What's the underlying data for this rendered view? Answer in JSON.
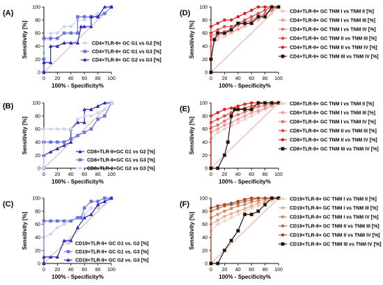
{
  "chart_data": [
    {
      "panel_label": "(A)",
      "type": "line",
      "xlabel": "100% - Specificity%",
      "ylabel": "Sensitivity [%]",
      "xlim": [
        0,
        100
      ],
      "ylim": [
        0,
        100
      ],
      "xticks": [
        0,
        20,
        40,
        60,
        80,
        100
      ],
      "yticks": [
        0,
        20,
        40,
        60,
        80,
        100
      ],
      "legend_position": "bottom-right",
      "series": [
        {
          "name": "CD4+TLR-9+ GC G1 vs G2 [%]",
          "marker": "circle",
          "color": "#cdd3ef",
          "x": [
            0,
            0,
            0,
            0,
            10,
            10,
            20,
            30,
            40,
            50,
            60,
            80,
            90,
            100
          ],
          "y": [
            0,
            15,
            30,
            50,
            50,
            60,
            60,
            70,
            70,
            80,
            80,
            90,
            90,
            100
          ]
        },
        {
          "name": "CD4+TLR-9+ GC G1 vs G3 [%]",
          "marker": "square",
          "color": "#6b73e0",
          "x": [
            0,
            0,
            0,
            10,
            20,
            30,
            40,
            50,
            50,
            60,
            70,
            80,
            90,
            100
          ],
          "y": [
            0,
            20,
            52,
            52,
            52,
            60,
            60,
            60,
            85,
            85,
            85,
            85,
            90,
            100
          ]
        },
        {
          "name": "CD4+TLR-9+ GC G2 vs G3 [%]",
          "marker": "triangle",
          "color": "#2727b8",
          "x": [
            0,
            0,
            10,
            10,
            20,
            30,
            40,
            50,
            55,
            60,
            70,
            70,
            80,
            90,
            100
          ],
          "y": [
            0,
            15,
            15,
            40,
            40,
            45,
            45,
            45,
            70,
            70,
            70,
            85,
            85,
            100,
            100
          ]
        }
      ]
    },
    {
      "panel_label": "(B)",
      "type": "line",
      "xlabel": "100% - Specificity%",
      "ylabel": "Sensitivity [%]",
      "xlim": [
        0,
        100
      ],
      "ylim": [
        0,
        100
      ],
      "xticks": [
        0,
        20,
        40,
        60,
        80,
        100
      ],
      "yticks": [
        0,
        20,
        40,
        60,
        80,
        100
      ],
      "legend_position": "bottom-right",
      "series": [
        {
          "name": "CD8+TLR-9+GC  G1 vs G2 [%]",
          "marker": "triangle",
          "color": "#2727b8",
          "x": [
            0,
            0,
            10,
            20,
            30,
            40,
            40,
            50,
            60,
            60,
            70,
            80,
            90,
            100
          ],
          "y": [
            0,
            20,
            25,
            30,
            35,
            40,
            60,
            70,
            70,
            90,
            90,
            95,
            100,
            100
          ]
        },
        {
          "name": "CD8+TLR-9+GC  G1 vs G3 [%]",
          "marker": "square",
          "color": "#6b73e0",
          "x": [
            0,
            0,
            10,
            20,
            30,
            40,
            50,
            60,
            70,
            80,
            90,
            100
          ],
          "y": [
            0,
            40,
            40,
            40,
            40,
            45,
            50,
            55,
            60,
            75,
            80,
            100
          ]
        },
        {
          "name": "CD8+TLR-9+GC  G2 vs G3 [%]",
          "marker": "circle",
          "color": "#cdd3ef",
          "x": [
            0,
            0,
            10,
            20,
            30,
            40,
            50,
            60,
            70,
            80,
            90,
            100
          ],
          "y": [
            0,
            60,
            60,
            60,
            60,
            60,
            75,
            80,
            80,
            85,
            90,
            100
          ]
        }
      ]
    },
    {
      "panel_label": "(C)",
      "type": "line",
      "xlabel": "100% - Specificity%",
      "ylabel": "Sensitivity [%]",
      "xlim": [
        0,
        100
      ],
      "ylim": [
        0,
        100
      ],
      "xticks": [
        0,
        20,
        40,
        60,
        80,
        100
      ],
      "yticks": [
        0,
        20,
        40,
        60,
        80,
        100
      ],
      "legend_position": "bottom-right",
      "series": [
        {
          "name": "CD19+TLR-9+ GC G1 vs. G2 [%]",
          "marker": "circle",
          "color": "#cdd3ef",
          "x": [
            0,
            0,
            10,
            20,
            30,
            40,
            50,
            60,
            70,
            80,
            90,
            100
          ],
          "y": [
            0,
            40,
            45,
            55,
            60,
            65,
            70,
            75,
            85,
            85,
            90,
            100
          ]
        },
        {
          "name": "CD19+TLR-9+ GC G1 vs. G3 [%]",
          "marker": "square",
          "color": "#6b73e0",
          "x": [
            0,
            0,
            10,
            20,
            30,
            40,
            50,
            55,
            60,
            70,
            80,
            90,
            100
          ],
          "y": [
            0,
            65,
            65,
            65,
            65,
            65,
            70,
            70,
            85,
            95,
            95,
            100,
            100
          ]
        },
        {
          "name": "CD19+TLR-9+ GC G2 vs. G3 [%]",
          "marker": "triangle",
          "color": "#2727b8",
          "x": [
            0,
            0,
            10,
            20,
            30,
            40,
            50,
            60,
            70,
            80,
            90,
            100
          ],
          "y": [
            0,
            10,
            10,
            10,
            35,
            35,
            55,
            70,
            75,
            90,
            95,
            100
          ]
        }
      ]
    },
    {
      "panel_label": "(D)",
      "type": "line",
      "xlabel": "100% - Specificity%",
      "ylabel": "Sensitivity [%]",
      "xlim": [
        0,
        100
      ],
      "ylim": [
        0,
        100
      ],
      "xticks": [
        0,
        20,
        40,
        60,
        80,
        100
      ],
      "yticks": [
        0,
        20,
        40,
        60,
        80,
        100
      ],
      "legend_position": "right",
      "series": [
        {
          "name": "CD4+TLR-9+ GC TNM I vs TNM II [%]",
          "marker": "circle",
          "color": "#f7c6c6",
          "x": [
            0,
            0,
            10,
            20,
            30,
            40,
            50,
            60,
            70,
            80,
            90,
            100
          ],
          "y": [
            0,
            40,
            50,
            55,
            60,
            65,
            70,
            75,
            80,
            85,
            90,
            100
          ]
        },
        {
          "name": "CD4+TLR-9+ GC TNM I vs TNM III [%]",
          "marker": "circle",
          "color": "#f09a9a",
          "x": [
            0,
            0,
            10,
            20,
            30,
            40,
            50,
            60,
            70,
            80,
            90,
            100
          ],
          "y": [
            0,
            50,
            55,
            60,
            62,
            66,
            72,
            78,
            82,
            88,
            95,
            100
          ]
        },
        {
          "name": "CD4+TLR-9+ GC TNM I vs TNM IV [%]",
          "marker": "circle",
          "color": "#e87070",
          "x": [
            0,
            0,
            10,
            20,
            30,
            40,
            50,
            60,
            70,
            80,
            90,
            100
          ],
          "y": [
            0,
            55,
            60,
            62,
            66,
            72,
            76,
            80,
            85,
            90,
            95,
            100
          ]
        },
        {
          "name": "CD4+TLR-9+ GC TNM II vs TNM III [%]",
          "marker": "circle",
          "color": "#de4848",
          "x": [
            0,
            0,
            10,
            20,
            30,
            40,
            50,
            60,
            70,
            80,
            90,
            100
          ],
          "y": [
            0,
            60,
            65,
            70,
            70,
            75,
            80,
            85,
            90,
            95,
            100,
            100
          ]
        },
        {
          "name": "CD4+TLR-9+ GC TNM II vs TNM IV [%]",
          "marker": "circle",
          "color": "#e01e1e",
          "x": [
            0,
            0,
            10,
            20,
            30,
            40,
            50,
            60,
            70,
            80,
            90,
            100
          ],
          "y": [
            0,
            70,
            75,
            80,
            80,
            85,
            90,
            95,
            100,
            100,
            100,
            100
          ]
        },
        {
          "name": "CD4+TLR-9+ GC TNM III vs TNM IV [%]",
          "marker": "square",
          "color": "#111111",
          "x": [
            0,
            0,
            5,
            10,
            20,
            30,
            40,
            50,
            60,
            70,
            80,
            90,
            100
          ],
          "y": [
            0,
            20,
            50,
            60,
            60,
            65,
            75,
            75,
            75,
            85,
            85,
            100,
            100
          ]
        }
      ]
    },
    {
      "panel_label": "(E)",
      "type": "line",
      "xlabel": "100% - Specificity%",
      "ylabel": "Sensitivity [%]",
      "xlim": [
        0,
        100
      ],
      "ylim": [
        0,
        100
      ],
      "xticks": [
        0,
        20,
        40,
        60,
        80,
        100
      ],
      "yticks": [
        0,
        20,
        40,
        60,
        80,
        100
      ],
      "legend_position": "right",
      "series": [
        {
          "name": "CD8+TLR-9+ GC TNM I vs TNM II [%]",
          "marker": "circle",
          "color": "#f7c6c6",
          "x": [
            0,
            0,
            10,
            20,
            30,
            40,
            50,
            60,
            70,
            80,
            90,
            100
          ],
          "y": [
            0,
            45,
            55,
            60,
            65,
            70,
            75,
            80,
            85,
            90,
            95,
            100
          ]
        },
        {
          "name": "CD8+TLR-9+ GC TNM I vs TNM III [%]",
          "marker": "circle",
          "color": "#f09a9a",
          "x": [
            0,
            0,
            10,
            20,
            30,
            40,
            50,
            60,
            70,
            80,
            90,
            100
          ],
          "y": [
            0,
            55,
            60,
            66,
            70,
            75,
            80,
            85,
            88,
            92,
            96,
            100
          ]
        },
        {
          "name": "CD8+TLR-9+ GC TNM I vs TNM IV [%]",
          "marker": "circle",
          "color": "#e87070",
          "x": [
            0,
            0,
            10,
            20,
            30,
            40,
            50,
            60,
            70,
            80,
            90,
            100
          ],
          "y": [
            0,
            62,
            66,
            72,
            78,
            82,
            86,
            90,
            94,
            96,
            98,
            100
          ]
        },
        {
          "name": "CD8+TLR-9+ GC TNM II vs TNM III [%]",
          "marker": "circle",
          "color": "#de4848",
          "x": [
            0,
            0,
            10,
            20,
            30,
            40,
            50,
            60,
            70,
            80,
            90,
            100
          ],
          "y": [
            0,
            70,
            75,
            80,
            85,
            90,
            92,
            95,
            98,
            100,
            100,
            100
          ]
        },
        {
          "name": "CD8+TLR-9+ GC TNM II vs TNM IV [%]",
          "marker": "circle",
          "color": "#e01e1e",
          "x": [
            0,
            0,
            10,
            20,
            30,
            40,
            50,
            60,
            70,
            80,
            90,
            100
          ],
          "y": [
            0,
            80,
            85,
            90,
            92,
            95,
            98,
            100,
            100,
            100,
            100,
            100
          ]
        },
        {
          "name": "CD8+TLR-9+ GC TNM III vs TNM IV [%]",
          "marker": "square",
          "color": "#111111",
          "x": [
            0,
            0,
            10,
            20,
            25,
            30,
            35,
            40,
            50,
            60,
            70,
            80,
            90,
            100
          ],
          "y": [
            0,
            0,
            0,
            20,
            40,
            80,
            90,
            90,
            90,
            90,
            100,
            100,
            100,
            100
          ]
        }
      ]
    },
    {
      "panel_label": "(F)",
      "type": "line",
      "xlabel": "100% - Specificity%",
      "ylabel": "Sensitivity [%]",
      "xlim": [
        0,
        100
      ],
      "ylim": [
        0,
        100
      ],
      "xticks": [
        0,
        20,
        40,
        60,
        80,
        100
      ],
      "yticks": [
        0,
        20,
        40,
        60,
        80,
        100
      ],
      "legend_position": "right",
      "series": [
        {
          "name": "CD19+TLR-9+ GC TNM I vs TNM II [%]",
          "marker": "circle",
          "color": "#f5d2c0",
          "x": [
            0,
            0,
            10,
            20,
            30,
            40,
            50,
            60,
            70,
            80,
            90,
            100
          ],
          "y": [
            0,
            50,
            60,
            65,
            70,
            75,
            80,
            85,
            88,
            92,
            96,
            100
          ]
        },
        {
          "name": "CD19+TLR-9+ GC TNM I vs TNM III [%]",
          "marker": "circle",
          "color": "#e9ad8e",
          "x": [
            0,
            0,
            10,
            20,
            30,
            40,
            50,
            60,
            70,
            80,
            90,
            100
          ],
          "y": [
            0,
            60,
            66,
            72,
            76,
            80,
            84,
            88,
            92,
            95,
            98,
            100
          ]
        },
        {
          "name": "CD19+TLR-9+ GC TNM I vs TNM IV [%]",
          "marker": "circle",
          "color": "#d88a60",
          "x": [
            0,
            0,
            10,
            20,
            30,
            40,
            50,
            60,
            70,
            80,
            90,
            100
          ],
          "y": [
            0,
            70,
            75,
            80,
            84,
            88,
            90,
            94,
            96,
            98,
            100,
            100
          ]
        },
        {
          "name": "CD19+TLR-9+ GC TNM II vs TNM III [%]",
          "marker": "circle",
          "color": "#c4683d",
          "x": [
            0,
            0,
            10,
            20,
            30,
            40,
            50,
            60,
            70,
            80,
            90,
            100
          ],
          "y": [
            0,
            80,
            84,
            88,
            90,
            92,
            95,
            97,
            100,
            100,
            100,
            100
          ]
        },
        {
          "name": "CD19+TLR-9+ GC TNM II vs TNM IV [%]",
          "marker": "circle",
          "color": "#a84a22",
          "x": [
            0,
            0,
            10,
            20,
            30,
            40,
            50,
            60,
            70,
            80,
            90,
            100
          ],
          "y": [
            0,
            85,
            88,
            90,
            92,
            95,
            98,
            100,
            100,
            100,
            100,
            100
          ]
        },
        {
          "name": "CD19+TLR-9+ GC TNM III vs TNM IV [%]",
          "marker": "square",
          "color": "#111111",
          "x": [
            0,
            0,
            10,
            20,
            30,
            40,
            50,
            60,
            70,
            80,
            90,
            100
          ],
          "y": [
            0,
            0,
            0,
            20,
            35,
            50,
            75,
            75,
            80,
            90,
            100,
            100
          ]
        }
      ]
    }
  ]
}
